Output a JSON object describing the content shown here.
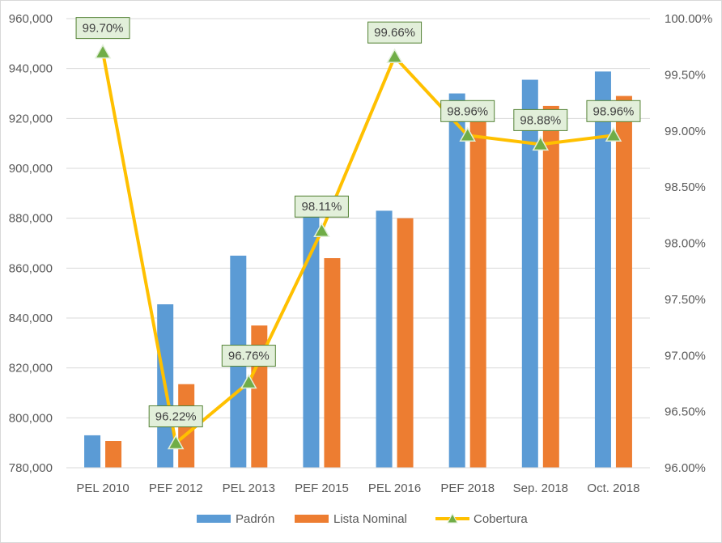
{
  "chart_data": {
    "type": "bar",
    "categories": [
      "PEL 2010",
      "PEF 2012",
      "PEL 2013",
      "PEF 2015",
      "PEL 2016",
      "PEF 2018",
      "Sep. 2018",
      "Oct. 2018"
    ],
    "series": [
      {
        "name": "Padrón",
        "axis": "left",
        "values": [
          793000,
          845500,
          865000,
          880500,
          883000,
          930000,
          935500,
          938800
        ],
        "color": "#5b9bd5"
      },
      {
        "name": "Lista Nominal",
        "axis": "left",
        "values": [
          790700,
          813500,
          837000,
          864000,
          880000,
          920000,
          925000,
          929000
        ],
        "color": "#ed7d31"
      },
      {
        "name": "Cobertura",
        "axis": "right",
        "type": "line",
        "values": [
          99.7,
          96.22,
          96.76,
          98.11,
          99.66,
          98.96,
          98.88,
          98.96
        ],
        "color": "#ffc000",
        "marker_color": "#70ad47"
      }
    ],
    "data_labels": [
      "99.70%",
      "96.22%",
      "96.76%",
      "98.11%",
      "99.66%",
      "98.96%",
      "98.88%",
      "98.96%"
    ],
    "ylim_left": [
      780000,
      960000
    ],
    "ylim_right": [
      96,
      100
    ],
    "yticks_left": [
      "780,000",
      "800,000",
      "820,000",
      "840,000",
      "860,000",
      "880,000",
      "900,000",
      "920,000",
      "940,000",
      "960,000"
    ],
    "yticks_right": [
      "96.00%",
      "96.50%",
      "97.00%",
      "97.50%",
      "98.00%",
      "98.50%",
      "99.00%",
      "99.50%",
      "100.00%"
    ],
    "legend": [
      "Padrón",
      "Lista Nominal",
      "Cobertura"
    ],
    "legend_position": "bottom",
    "grid": true
  }
}
